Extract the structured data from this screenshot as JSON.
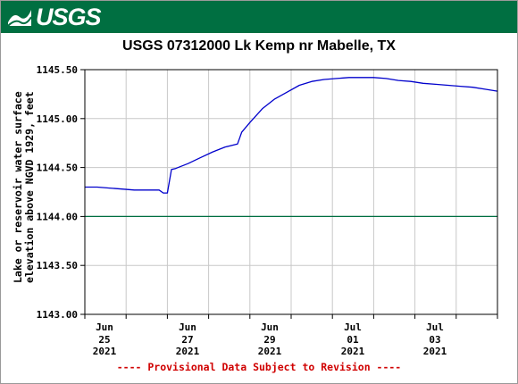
{
  "header": {
    "logo_text": "USGS",
    "brand_color": "#006f41",
    "logo_icon": "usgs-wave-icon"
  },
  "chart_data": {
    "type": "line",
    "title": "USGS 07312000 Lk Kemp nr Mabelle, TX",
    "ylabel_line1": "Lake or reservoir water surface",
    "ylabel_line2": "elevation above NGVD 1929, feet",
    "xlabel": "",
    "ylim": [
      1143.0,
      1145.5
    ],
    "yticks": [
      "1143.00",
      "1143.50",
      "1144.00",
      "1144.50",
      "1145.00",
      "1145.50"
    ],
    "ytick_values": [
      1143.0,
      1143.5,
      1144.0,
      1144.5,
      1145.0,
      1145.5
    ],
    "xlim_days": [
      0,
      5.0
    ],
    "xticks": [
      {
        "day": 0.25,
        "month": "Jun",
        "date": "25",
        "year": "2021"
      },
      {
        "day": 2.25,
        "month": "Jun",
        "date": "27",
        "year": "2021"
      },
      {
        "day": 4.25,
        "month": "Jun",
        "date": "29",
        "year": "2021"
      },
      {
        "day": 6.25,
        "month": "Jul",
        "date": "01",
        "year": "2021"
      },
      {
        "day": 8.25,
        "month": "Jul",
        "date": "03",
        "year": "2021"
      }
    ],
    "reference_line": {
      "value": 1144.0,
      "color": "#006f41"
    },
    "grid": true,
    "series": [
      {
        "color": "#0000cc",
        "x": [
          0,
          0.3,
          0.6,
          0.9,
          1.2,
          1.5,
          1.8,
          1.9,
          2.0,
          2.05,
          2.1,
          2.2,
          2.5,
          2.8,
          3.1,
          3.4,
          3.7,
          3.75,
          3.8,
          4.0,
          4.3,
          4.6,
          4.9,
          5.2,
          5.5,
          5.8,
          6.1,
          6.4,
          6.7,
          7.0,
          7.3,
          7.6,
          7.9,
          8.2,
          8.5,
          8.8,
          9.1,
          9.4,
          9.7,
          10.0
        ],
        "y": [
          1144.3,
          1144.3,
          1144.29,
          1144.28,
          1144.27,
          1144.27,
          1144.27,
          1144.24,
          1144.24,
          1144.36,
          1144.48,
          1144.49,
          1144.54,
          1144.6,
          1144.66,
          1144.71,
          1144.74,
          1144.8,
          1144.86,
          1144.96,
          1145.1,
          1145.2,
          1145.27,
          1145.34,
          1145.38,
          1145.4,
          1145.41,
          1145.42,
          1145.42,
          1145.42,
          1145.41,
          1145.39,
          1145.38,
          1145.36,
          1145.35,
          1145.34,
          1145.33,
          1145.32,
          1145.3,
          1145.28
        ]
      }
    ]
  },
  "footer": {
    "notice": "---- Provisional Data Subject to Revision ----",
    "color": "#d00000"
  }
}
